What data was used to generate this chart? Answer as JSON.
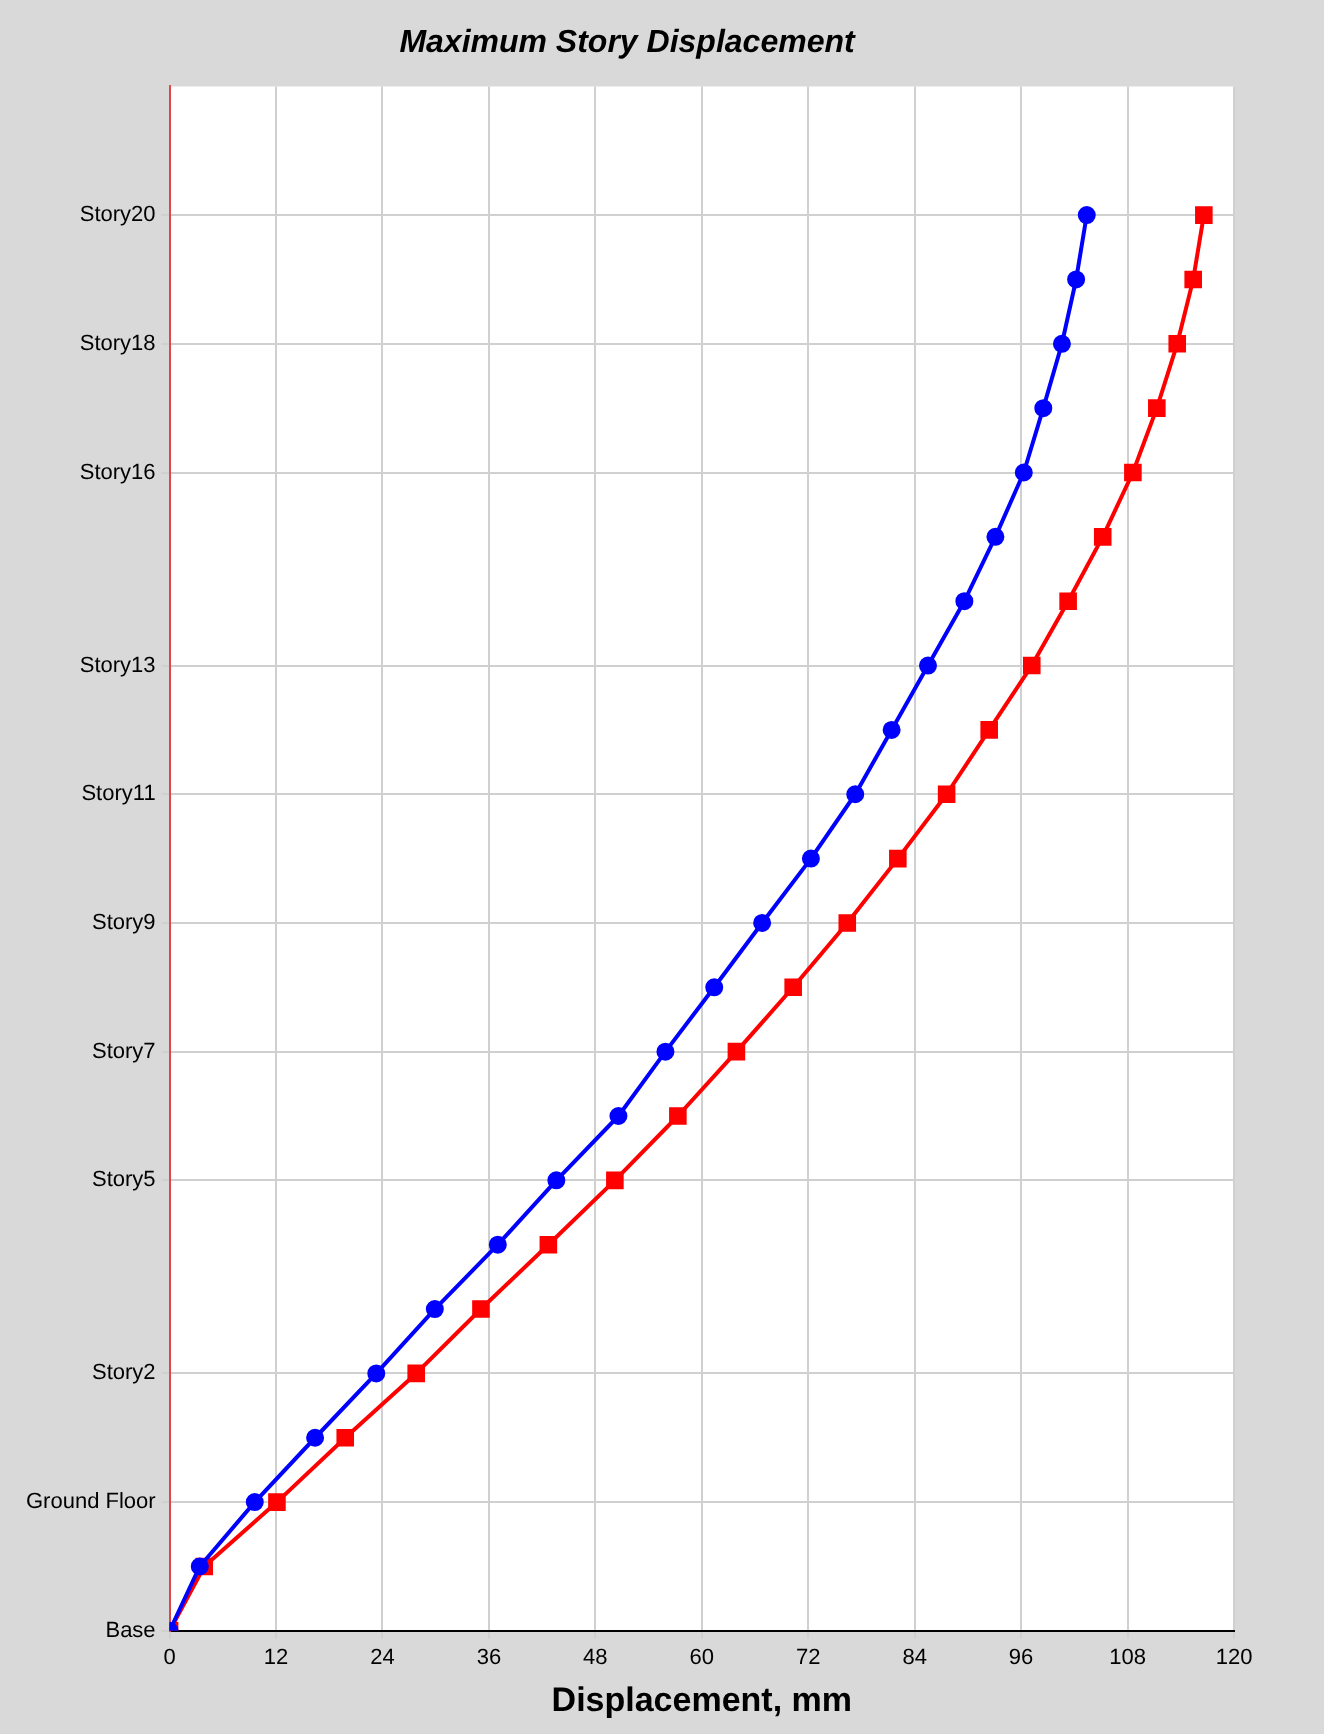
{
  "chart_data": {
    "type": "line",
    "orientation": "horizontal",
    "title": "Maximum Story Displacement",
    "xlabel": "Displacement, mm",
    "categories": [
      null,
      null,
      "Story20",
      null,
      "Story18",
      null,
      "Story16",
      null,
      null,
      "Story13",
      null,
      "Story11",
      null,
      "Story9",
      null,
      "Story7",
      null,
      "Story5",
      null,
      null,
      "Story2",
      null,
      "Ground Floor",
      null,
      "Base"
    ],
    "series": [
      {
        "color": "#0000ff",
        "marker": "circle",
        "values": [
          null,
          null,
          103.4,
          102.2,
          100.6,
          98.5,
          96.3,
          93.1,
          89.6,
          85.5,
          81.4,
          77.3,
          72.3,
          66.8,
          61.4,
          55.9,
          50.6,
          43.6,
          37.0,
          29.9,
          23.3,
          16.4,
          9.6,
          3.4,
          0
        ]
      },
      {
        "color": "#ff0000",
        "marker": "square",
        "values": [
          null,
          null,
          116.6,
          115.4,
          113.6,
          111.3,
          108.6,
          105.2,
          101.3,
          97.2,
          92.4,
          87.6,
          82.1,
          76.4,
          70.3,
          63.9,
          57.3,
          50.2,
          42.7,
          35.1,
          27.8,
          19.8,
          12.1,
          3.9,
          0
        ]
      }
    ],
    "xlim": [
      0,
      120
    ],
    "xticks": [
      0,
      12,
      24,
      36,
      48,
      60,
      72,
      84,
      96,
      108,
      120
    ],
    "grid": true,
    "legend": false,
    "line_style": "solid"
  }
}
